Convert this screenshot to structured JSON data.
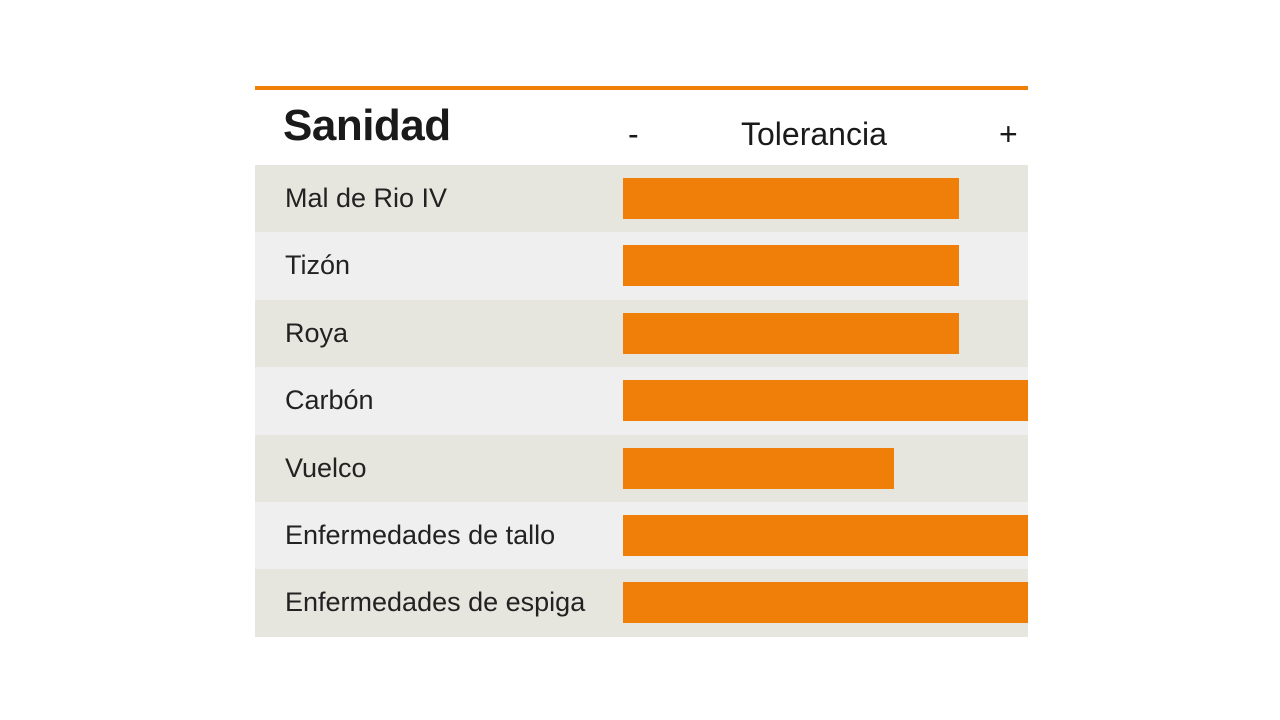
{
  "colors": {
    "accent": "#f07f09",
    "row_dark": "#e6e5de",
    "row_light": "#efefef"
  },
  "chart_data": {
    "type": "bar",
    "orientation": "horizontal",
    "title": "Sanidad",
    "scale_label": "Tolerancia",
    "scale_min_label": "-",
    "scale_max_label": "+",
    "xlim": [
      0,
      1
    ],
    "categories": [
      "Mal de Rio IV",
      "Tizón",
      "Roya",
      "Carbón",
      "Vuelco",
      "Enfermedades de tallo",
      "Enfermedades de espiga"
    ],
    "values": [
      0.83,
      0.83,
      0.83,
      1.0,
      0.67,
      1.0,
      1.0
    ]
  }
}
